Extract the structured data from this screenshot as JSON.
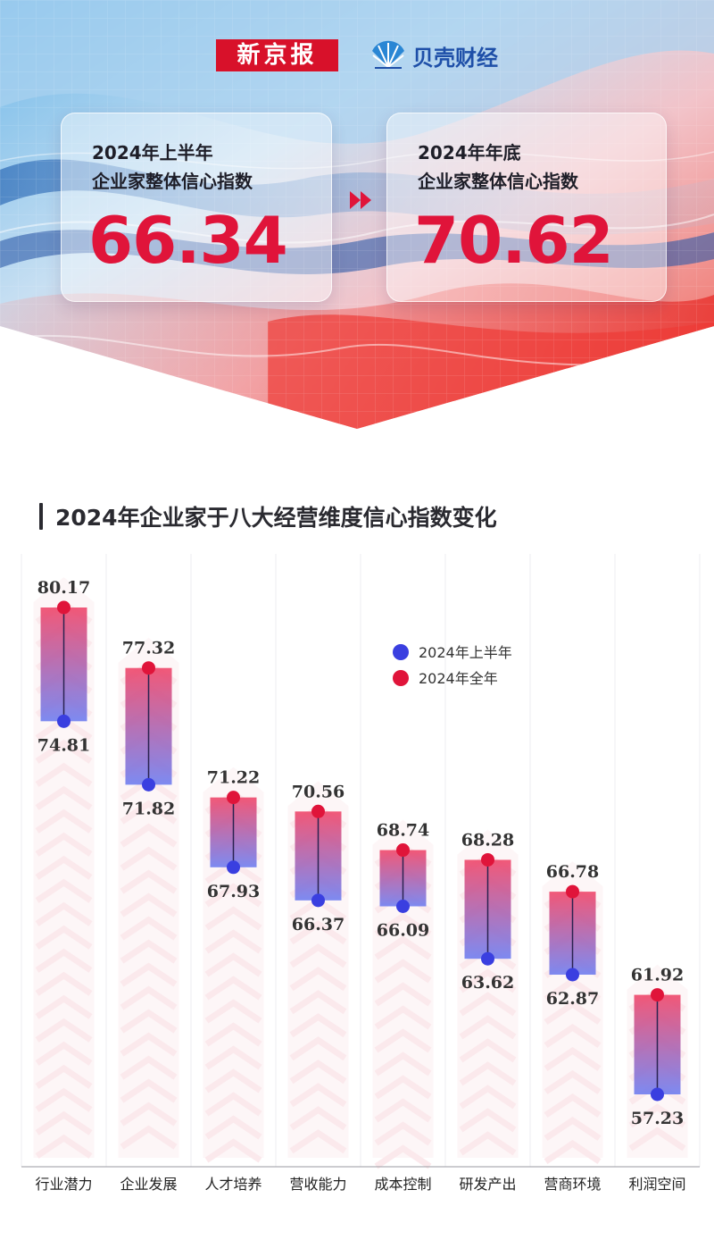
{
  "brand": {
    "xjb": "新京报",
    "beike": "贝壳财经"
  },
  "cards": {
    "left": {
      "line1": "2024年上半年",
      "line2": "企业家整体信心指数",
      "value": "66.34"
    },
    "right": {
      "line1": "2024年年底",
      "line2": "企业家整体信心指数",
      "value": "70.62"
    }
  },
  "colors": {
    "accent_red": "#e0143a",
    "h1_blue": "#3a3fe0",
    "full_red": "#e0143a",
    "brand_red": "#d8112a",
    "brand_blue": "#1e4fa8"
  },
  "chart_data": {
    "type": "range-bar",
    "title": "2024年企业家于八大经营维度信心指数变化",
    "categories": [
      "行业潜力",
      "企业发展",
      "人才培养",
      "营收能力",
      "成本控制",
      "研发产出",
      "营商环境",
      "利润空间"
    ],
    "series": [
      {
        "name": "2024年上半年",
        "values": [
          74.81,
          71.82,
          67.93,
          66.37,
          66.09,
          63.62,
          62.87,
          57.23
        ]
      },
      {
        "name": "2024年全年",
        "values": [
          80.17,
          77.32,
          71.22,
          70.56,
          68.74,
          68.28,
          66.78,
          61.92
        ]
      }
    ],
    "value_labels": {
      "h1": [
        "74.81",
        "71.82",
        "67.93",
        "66.37",
        "66.09",
        "63.62",
        "62.87",
        "57.23"
      ],
      "full": [
        "80.17",
        "77.32",
        "71.22",
        "70.56",
        "68.74",
        "68.28",
        "66.78",
        "61.92"
      ]
    },
    "legend_position": "top-right",
    "grid": true
  }
}
